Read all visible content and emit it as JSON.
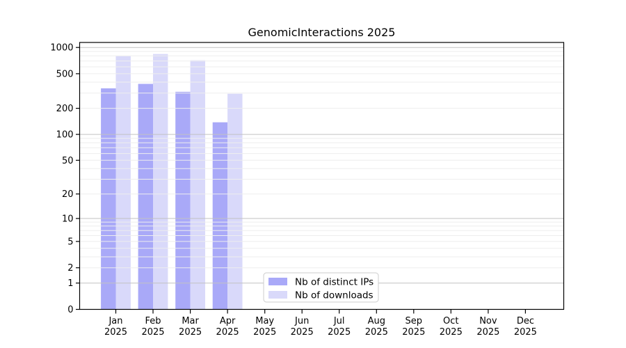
{
  "chart_data": {
    "type": "bar",
    "title": "GenomicInteractions 2025",
    "y_scale": "log10(1+y)",
    "ylim": [
      0,
      1000
    ],
    "y_ticks": [
      0,
      1,
      2,
      5,
      10,
      20,
      50,
      100,
      200,
      500,
      1000
    ],
    "grid": true,
    "legend_position": "bottom-center",
    "categories": [
      "Jan 2025",
      "Feb 2025",
      "Mar 2025",
      "Apr 2025",
      "May 2025",
      "Jun 2025",
      "Jul 2025",
      "Aug 2025",
      "Sep 2025",
      "Oct 2025",
      "Nov 2025",
      "Dec 2025"
    ],
    "x_ticks": [
      {
        "line1": "Jan",
        "line2": "2025"
      },
      {
        "line1": "Feb",
        "line2": "2025"
      },
      {
        "line1": "Mar",
        "line2": "2025"
      },
      {
        "line1": "Apr",
        "line2": "2025"
      },
      {
        "line1": "May",
        "line2": "2025"
      },
      {
        "line1": "Jun",
        "line2": "2025"
      },
      {
        "line1": "Jul",
        "line2": "2025"
      },
      {
        "line1": "Aug",
        "line2": "2025"
      },
      {
        "line1": "Sep",
        "line2": "2025"
      },
      {
        "line1": "Oct",
        "line2": "2025"
      },
      {
        "line1": "Nov",
        "line2": "2025"
      },
      {
        "line1": "Dec",
        "line2": "2025"
      }
    ],
    "series": [
      {
        "name": "Nb of distinct IPs",
        "color": "#a9a9f8",
        "values": [
          340,
          382,
          310,
          138,
          null,
          null,
          null,
          null,
          null,
          null,
          null,
          null
        ]
      },
      {
        "name": "Nb of downloads",
        "color": "#d9d9fa",
        "values": [
          795,
          842,
          713,
          294,
          null,
          null,
          null,
          null,
          null,
          null,
          null,
          null
        ]
      }
    ],
    "colors": {
      "grid_major": "#c2c2c2",
      "grid_minor": "#eeeeee",
      "axis": "#000000",
      "legend_border": "#cccccc",
      "legend_bg": "#ffffff"
    }
  }
}
